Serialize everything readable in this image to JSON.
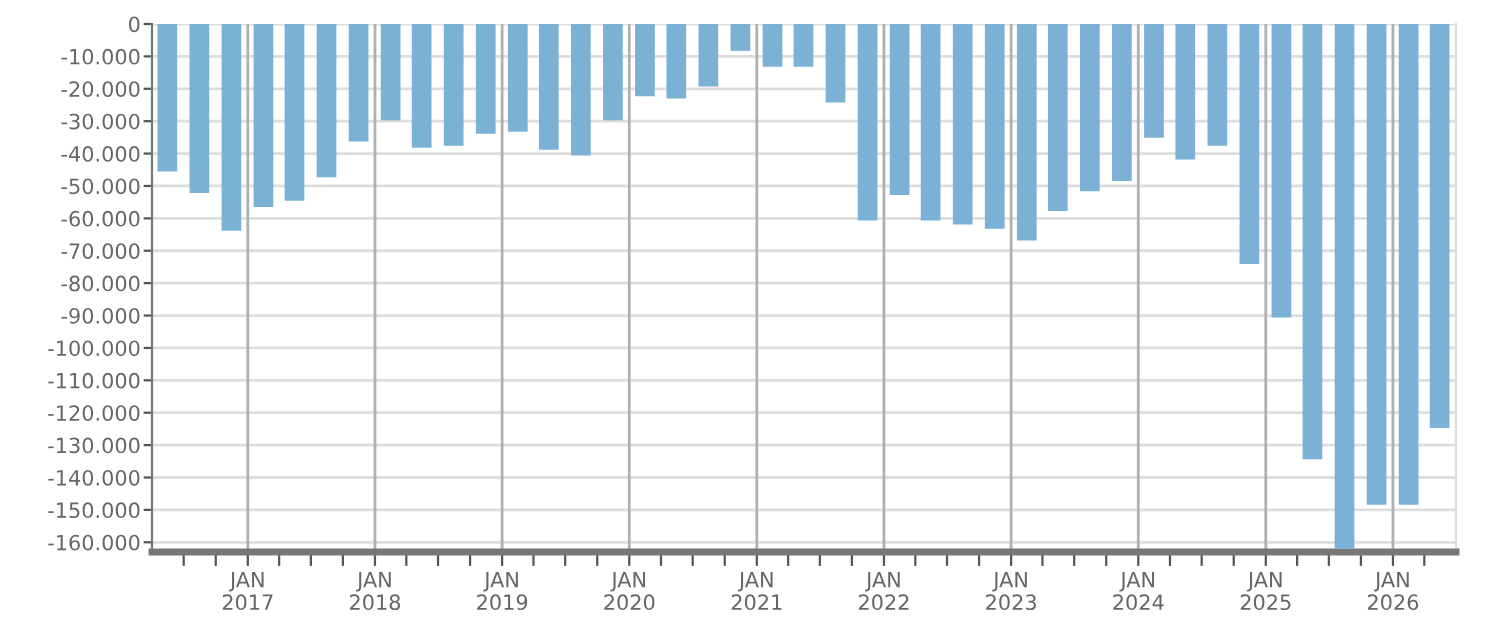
{
  "chart_data": {
    "type": "bar",
    "x": [
      "2016-05-15",
      "2016-08-15",
      "2016-11-15",
      "2017-02-15",
      "2017-05-15",
      "2017-08-15",
      "2017-11-15",
      "2018-02-15",
      "2018-05-15",
      "2018-08-15",
      "2018-11-15",
      "2019-02-15",
      "2019-05-15",
      "2019-08-15",
      "2019-11-15",
      "2020-02-15",
      "2020-05-15",
      "2020-08-15",
      "2020-11-15",
      "2021-02-15",
      "2021-05-15",
      "2021-08-15",
      "2021-11-15",
      "2022-02-15",
      "2022-05-15",
      "2022-08-15",
      "2022-11-15",
      "2023-02-15",
      "2023-05-15",
      "2023-08-15",
      "2023-11-15",
      "2024-02-15",
      "2024-05-15",
      "2024-08-15",
      "2024-11-15",
      "2025-02-15",
      "2025-05-15",
      "2025-08-15",
      "2025-11-15",
      "2026-02-15",
      "2026-05-15"
    ],
    "values": [
      -45500,
      -52200,
      -63800,
      -56500,
      -54600,
      -47300,
      -36300,
      -29700,
      -38200,
      -37600,
      -33900,
      -33300,
      -38800,
      -40600,
      -29700,
      -22300,
      -23000,
      -19300,
      -8300,
      -13200,
      -13200,
      -24200,
      -60700,
      -52800,
      -60700,
      -61900,
      -63200,
      -66800,
      -57700,
      -51600,
      -48500,
      -35100,
      -41800,
      -37600,
      -74100,
      -90600,
      -134400,
      -162000,
      -148400,
      -148400,
      -124700
    ],
    "color": "#7ab1d4",
    "xlim": [
      "2016-04-01",
      "2026-07-01"
    ],
    "xticks": [
      {
        "value": "2016-07-01",
        "label": null
      },
      {
        "value": "2016-10-01",
        "label": null
      },
      {
        "value": "2017-01-01",
        "label": "JAN\n2017"
      },
      {
        "value": "2017-04-01",
        "label": null
      },
      {
        "value": "2017-07-01",
        "label": null
      },
      {
        "value": "2017-10-01",
        "label": null
      },
      {
        "value": "2018-01-01",
        "label": "JAN\n2018"
      },
      {
        "value": "2018-04-01",
        "label": null
      },
      {
        "value": "2018-07-01",
        "label": null
      },
      {
        "value": "2018-10-01",
        "label": null
      },
      {
        "value": "2019-01-01",
        "label": "JAN\n2019"
      },
      {
        "value": "2019-04-01",
        "label": null
      },
      {
        "value": "2019-07-01",
        "label": null
      },
      {
        "value": "2019-10-01",
        "label": null
      },
      {
        "value": "2020-01-01",
        "label": "JAN\n2020"
      },
      {
        "value": "2020-04-01",
        "label": null
      },
      {
        "value": "2020-07-01",
        "label": null
      },
      {
        "value": "2020-10-01",
        "label": null
      },
      {
        "value": "2021-01-01",
        "label": "JAN\n2021"
      },
      {
        "value": "2021-04-01",
        "label": null
      },
      {
        "value": "2021-07-01",
        "label": null
      },
      {
        "value": "2021-10-01",
        "label": null
      },
      {
        "value": "2022-01-01",
        "label": "JAN\n2022"
      },
      {
        "value": "2022-04-01",
        "label": null
      },
      {
        "value": "2022-07-01",
        "label": null
      },
      {
        "value": "2022-10-01",
        "label": null
      },
      {
        "value": "2023-01-01",
        "label": "JAN\n2023"
      },
      {
        "value": "2023-04-01",
        "label": null
      },
      {
        "value": "2023-07-01",
        "label": null
      },
      {
        "value": "2023-10-01",
        "label": null
      },
      {
        "value": "2024-01-01",
        "label": "JAN\n2024"
      },
      {
        "value": "2024-04-01",
        "label": null
      },
      {
        "value": "2024-07-01",
        "label": null
      },
      {
        "value": "2024-10-01",
        "label": null
      },
      {
        "value": "2025-01-01",
        "label": "JAN\n2025"
      },
      {
        "value": "2025-04-01",
        "label": null
      },
      {
        "value": "2025-07-01",
        "label": null
      },
      {
        "value": "2025-10-01",
        "label": null
      },
      {
        "value": "2026-01-01",
        "label": "JAN\n2026"
      },
      {
        "value": "2026-04-01",
        "label": null
      }
    ],
    "ylim": [
      -163000,
      0
    ],
    "yticks": [
      {
        "value": 0,
        "label": "0"
      },
      {
        "value": -10000,
        "label": "-10.000"
      },
      {
        "value": -20000,
        "label": "-20.000"
      },
      {
        "value": -30000,
        "label": "-30.000"
      },
      {
        "value": -40000,
        "label": "-40.000"
      },
      {
        "value": -50000,
        "label": "-50.000"
      },
      {
        "value": -60000,
        "label": "-60.000"
      },
      {
        "value": -70000,
        "label": "-70.000"
      },
      {
        "value": -80000,
        "label": "-80.000"
      },
      {
        "value": -90000,
        "label": "-90.000"
      },
      {
        "value": -100000,
        "label": "-100.000"
      },
      {
        "value": -110000,
        "label": "-110.000"
      },
      {
        "value": -120000,
        "label": "-120.000"
      },
      {
        "value": -130000,
        "label": "-130.000"
      },
      {
        "value": -140000,
        "label": "-140.000"
      },
      {
        "value": -150000,
        "label": "-150.000"
      },
      {
        "value": -160000,
        "label": "-160.000"
      }
    ],
    "grid": true
  }
}
